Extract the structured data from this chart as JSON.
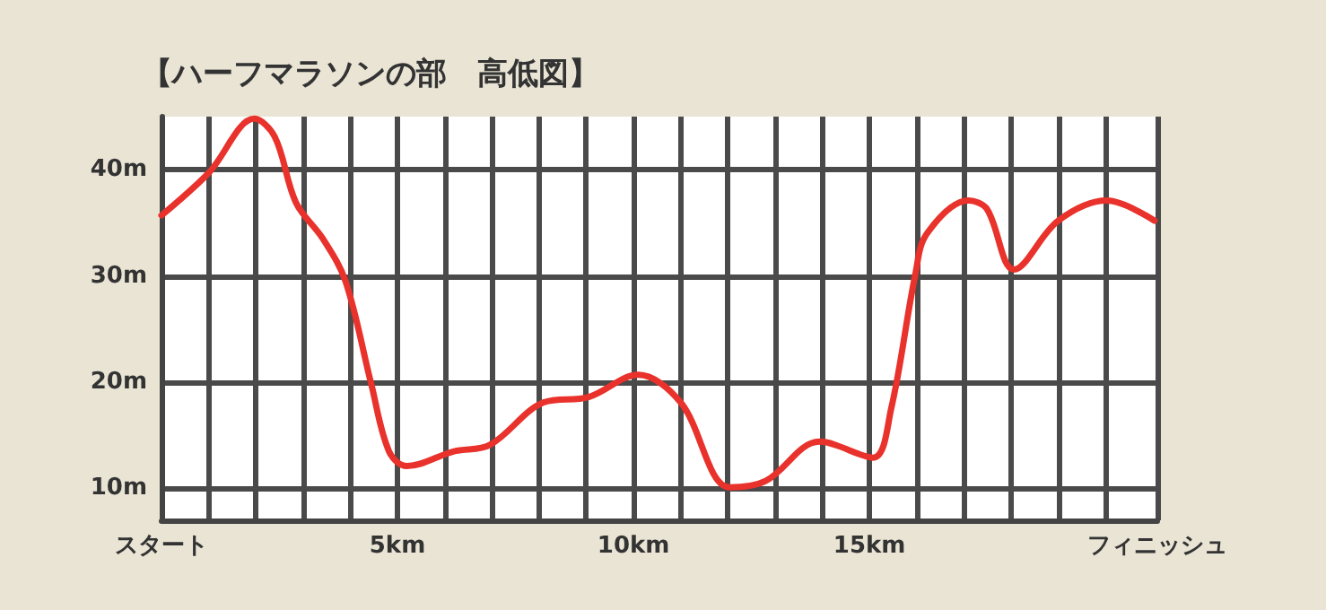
{
  "chart_data": {
    "type": "line",
    "title": "【ハーフマラソンの部　高低図】",
    "x": [
      0,
      1.0,
      1.97,
      2.4,
      2.85,
      3.42,
      3.9,
      4.44,
      4.82,
      5.2,
      6.2,
      6.96,
      8.1,
      9.05,
      10.1,
      11.0,
      12.04,
      12.8,
      13.94,
      15.08,
      15.46,
      15.97,
      16.22,
      17.1,
      17.49,
      18.06,
      19.0,
      20.03,
      21.04
    ],
    "series": [
      {
        "color": "#e8322b",
        "values": [
          35.7,
          39.7,
          44.8,
          43.1,
          36.9,
          33.5,
          29.5,
          19.9,
          13.5,
          12.1,
          13.5,
          14.1,
          18.1,
          18.6,
          20.7,
          18.1,
          10.1,
          10.7,
          14.4,
          12.9,
          17.5,
          30.1,
          34.0,
          37.1,
          36.3,
          30.6,
          35.2,
          37.1,
          35.2
        ]
      }
    ],
    "xlim": [
      0,
      21.1
    ],
    "xticks": [
      {
        "value": 0,
        "label": "スタート"
      },
      {
        "value": 1,
        "label": null
      },
      {
        "value": 2,
        "label": null
      },
      {
        "value": 3,
        "label": null
      },
      {
        "value": 4,
        "label": null
      },
      {
        "value": 5,
        "label": "5km"
      },
      {
        "value": 6,
        "label": null
      },
      {
        "value": 7,
        "label": null
      },
      {
        "value": 8,
        "label": null
      },
      {
        "value": 9,
        "label": null
      },
      {
        "value": 10,
        "label": "10km"
      },
      {
        "value": 11,
        "label": null
      },
      {
        "value": 12,
        "label": null
      },
      {
        "value": 13,
        "label": null
      },
      {
        "value": 14,
        "label": null
      },
      {
        "value": 15,
        "label": "15km"
      },
      {
        "value": 16,
        "label": null
      },
      {
        "value": 17,
        "label": null
      },
      {
        "value": 18,
        "label": null
      },
      {
        "value": 19,
        "label": null
      },
      {
        "value": 20,
        "label": null
      },
      {
        "value": 21.1,
        "label": "フィニッシュ"
      }
    ],
    "ylim": [
      7,
      45
    ],
    "yticks": [
      {
        "value": 10,
        "label": "10m"
      },
      {
        "value": 20,
        "label": "20m"
      },
      {
        "value": 30,
        "label": "30m"
      },
      {
        "value": 40,
        "label": "40m"
      }
    ],
    "grid": true,
    "marker": "none",
    "line_style": "solid"
  }
}
